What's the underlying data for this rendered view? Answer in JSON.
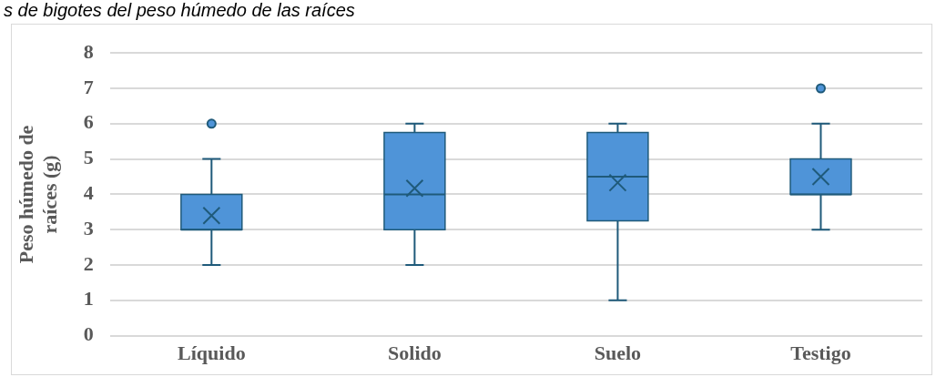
{
  "chart_data": {
    "type": "box",
    "title": "s de bigotes del peso húmedo de las raíces",
    "ylabel": "Peso húmedo de raíces (g)",
    "categories": [
      "Líquido",
      "Solido",
      "Suelo",
      "Testigo"
    ],
    "color": "#4f94d8",
    "boxes": [
      {
        "low": 2,
        "q1": 3,
        "median": 3,
        "q3": 4,
        "high": 5,
        "mean": 3.4,
        "outliers": [
          6
        ]
      },
      {
        "low": 2,
        "q1": 3,
        "median": 4,
        "q3": 5.75,
        "high": 6,
        "mean": 4.17
      },
      {
        "low": 1,
        "q1": 3.25,
        "median": 4.5,
        "q3": 5.75,
        "high": 6,
        "mean": 4.33
      },
      {
        "low": 3,
        "q1": 4,
        "median": 4,
        "q3": 5,
        "high": 6,
        "mean": 4.5,
        "outliers": [
          7
        ]
      }
    ],
    "ylim": [
      0,
      8
    ],
    "yticks": [
      0,
      1,
      2,
      3,
      4,
      5,
      6,
      7,
      8
    ],
    "grid": "y",
    "legend": false
  }
}
